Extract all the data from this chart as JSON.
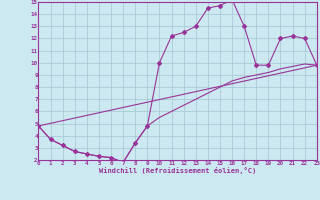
{
  "bg_color": "#cce8f0",
  "line_color": "#993399",
  "grid_color": "#aaccd8",
  "xlabel": "Windchill (Refroidissement éolien,°C)",
  "xlim": [
    0,
    23
  ],
  "ylim": [
    2,
    15
  ],
  "xticks": [
    0,
    1,
    2,
    3,
    4,
    5,
    6,
    7,
    8,
    9,
    10,
    11,
    12,
    13,
    14,
    15,
    16,
    17,
    18,
    19,
    20,
    21,
    22,
    23
  ],
  "yticks": [
    2,
    3,
    4,
    5,
    6,
    7,
    8,
    9,
    10,
    11,
    12,
    13,
    14,
    15
  ],
  "line1_x": [
    0,
    1,
    2,
    3,
    4,
    5,
    6,
    7,
    8,
    9,
    10,
    11,
    12,
    13,
    14,
    15,
    16,
    17,
    18,
    19,
    20,
    21,
    22,
    23
  ],
  "line1_y": [
    4.8,
    3.7,
    3.2,
    2.7,
    2.5,
    2.3,
    2.2,
    1.8,
    3.4,
    4.8,
    10.0,
    12.2,
    12.5,
    13.0,
    14.5,
    14.7,
    15.2,
    13.0,
    9.8,
    9.8,
    12.0,
    12.2,
    12.0,
    9.8
  ],
  "line2_x": [
    0,
    1,
    2,
    3,
    4,
    5,
    6,
    7,
    8,
    9,
    10,
    11,
    12,
    13,
    14,
    15,
    16,
    17,
    18,
    19,
    20,
    21,
    22,
    23
  ],
  "line2_y": [
    4.8,
    3.7,
    3.2,
    2.7,
    2.5,
    2.3,
    2.2,
    1.8,
    3.4,
    4.8,
    5.5,
    6.0,
    6.5,
    7.0,
    7.5,
    8.0,
    8.5,
    8.8,
    9.0,
    9.2,
    9.5,
    9.7,
    9.9,
    9.8
  ],
  "line3_x": [
    0,
    23
  ],
  "line3_y": [
    4.8,
    9.8
  ]
}
